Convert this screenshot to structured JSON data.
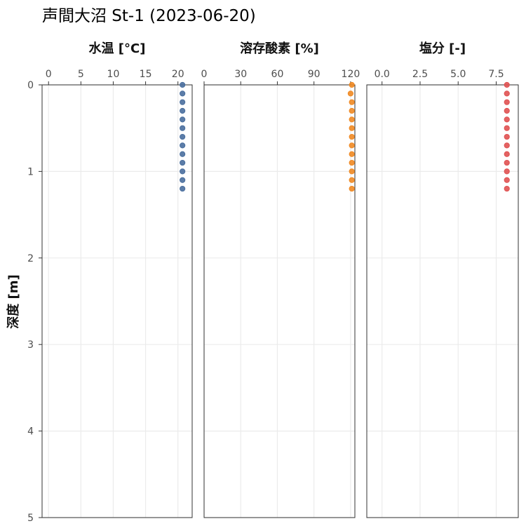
{
  "chart_data": {
    "type": "scatter",
    "title": "声間大沼 St-1 (2023-06-20)",
    "ylabel": "深度 [m]",
    "y_axis": {
      "reversed": true,
      "ylim": [
        0,
        5
      ],
      "ticks": [
        0,
        1,
        2,
        3,
        4,
        5
      ]
    },
    "depths": [
      0.0,
      0.1,
      0.2,
      0.3,
      0.4,
      0.5,
      0.6,
      0.7,
      0.8,
      0.9,
      1.0,
      1.1,
      1.2
    ],
    "panels": [
      {
        "title": "水温 [°C]",
        "xlim": [
          -1,
          22.2
        ],
        "ticks": [
          0,
          5,
          10,
          15,
          20
        ],
        "tick_labels": [
          "0",
          "5",
          "10",
          "15",
          "20"
        ],
        "color": "#4A6F9E",
        "values": [
          20.7,
          20.7,
          20.7,
          20.7,
          20.7,
          20.7,
          20.7,
          20.7,
          20.7,
          20.7,
          20.7,
          20.7,
          20.7
        ]
      },
      {
        "title": "溶存酸素 [%]",
        "xlim": [
          0,
          123.5
        ],
        "ticks": [
          0,
          30,
          60,
          90,
          120
        ],
        "tick_labels": [
          "0",
          "30",
          "60",
          "90",
          "120"
        ],
        "color": "#F08A24",
        "values": [
          121,
          120,
          121,
          121,
          121,
          121,
          121,
          121,
          121,
          121,
          121,
          121,
          121
        ]
      },
      {
        "title": "塩分 [-]",
        "xlim": [
          -1.0,
          8.95
        ],
        "ticks": [
          0.0,
          2.5,
          5.0,
          7.5
        ],
        "tick_labels": [
          "0.0",
          "2.5",
          "5.0",
          "7.5"
        ],
        "color": "#E05252",
        "values": [
          8.2,
          8.2,
          8.2,
          8.2,
          8.2,
          8.2,
          8.2,
          8.2,
          8.2,
          8.2,
          8.2,
          8.2,
          8.2
        ]
      }
    ],
    "grid": true
  }
}
